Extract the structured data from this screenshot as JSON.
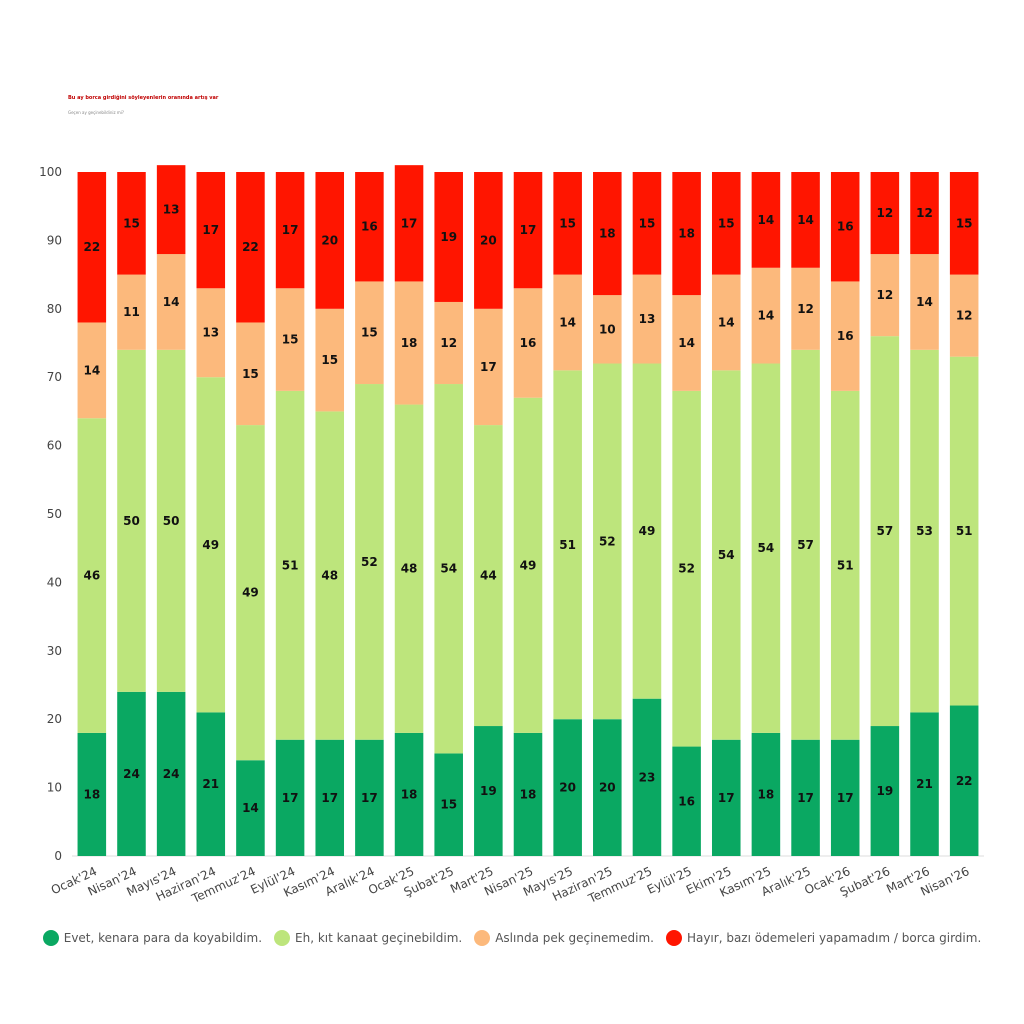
{
  "header": {
    "title": "Bu ay borca girdiğini söyleyenlerin oranında artış var",
    "subtitle": "Geçen ay geçinebildiniz mi?"
  },
  "chart_data": {
    "type": "bar",
    "stacked": true,
    "ylim": [
      0,
      100
    ],
    "yticks": [
      0,
      10,
      20,
      30,
      40,
      50,
      60,
      70,
      80,
      90,
      100
    ],
    "categories": [
      "Ocak'24",
      "Nisan'24",
      "Mayıs'24",
      "Haziran'24",
      "Temmuz'24",
      "Eylül'24",
      "Kasım'24",
      "Aralık'24",
      "Ocak'25",
      "Şubat'25",
      "Mart'25",
      "Nisan'25",
      "Mayıs'25",
      "Haziran'25",
      "Temmuz'25",
      "Eylül'25",
      "Ekim'25",
      "Kasım'25",
      "Aralık'25",
      "Ocak'26",
      "Şubat'26",
      "Mart'26",
      "Nisan'26"
    ],
    "series": [
      {
        "name": "Evet, kenara para da koyabildim.",
        "color": "#0aa862",
        "values": [
          18,
          24,
          24,
          21,
          14,
          17,
          17,
          17,
          18,
          15,
          19,
          18,
          20,
          20,
          23,
          16,
          17,
          18,
          17,
          17,
          19,
          21,
          22
        ]
      },
      {
        "name": "Eh, kıt kanaat geçinebildim.",
        "color": "#bde57c",
        "values": [
          46,
          50,
          50,
          49,
          49,
          51,
          48,
          52,
          48,
          54,
          44,
          49,
          51,
          52,
          49,
          52,
          54,
          54,
          57,
          51,
          57,
          53,
          51
        ]
      },
      {
        "name": "Aslında pek geçinemedim.",
        "color": "#fcb97c",
        "values": [
          14,
          11,
          14,
          13,
          15,
          15,
          15,
          15,
          18,
          12,
          17,
          16,
          14,
          10,
          13,
          14,
          14,
          14,
          12,
          16,
          12,
          14,
          12
        ]
      },
      {
        "name": "Hayır, bazı ödemeleri yapamadım / borca girdim.",
        "color": "#ff1500",
        "values": [
          22,
          15,
          13,
          17,
          22,
          17,
          20,
          16,
          17,
          19,
          20,
          17,
          15,
          18,
          15,
          18,
          15,
          14,
          14,
          16,
          12,
          12,
          15
        ]
      }
    ],
    "legend_position": "bottom",
    "grid": false
  }
}
